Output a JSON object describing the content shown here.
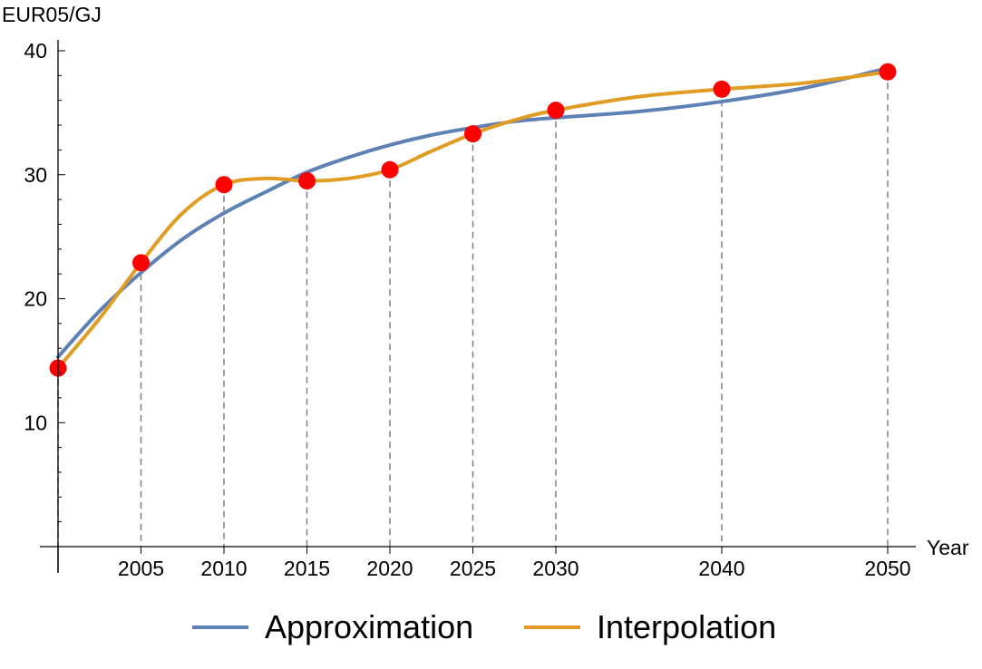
{
  "chart_data": {
    "type": "line",
    "title": "",
    "xlabel": "Year",
    "ylabel": "EUR05/GJ",
    "xlim": [
      2000,
      2050
    ],
    "ylim": [
      0,
      40
    ],
    "x_ticks": [
      2005,
      2010,
      2015,
      2020,
      2025,
      2030,
      2040,
      2050
    ],
    "y_ticks": [
      10,
      20,
      30,
      40
    ],
    "grid": false,
    "legend_position": "bottom",
    "points": {
      "x": [
        2000,
        2005,
        2010,
        2015,
        2020,
        2025,
        2030,
        2040,
        2050
      ],
      "y": [
        14.4,
        22.9,
        29.2,
        29.5,
        30.4,
        33.3,
        35.2,
        36.9,
        38.3
      ],
      "color": "#ff0000"
    },
    "series": [
      {
        "name": "Approximation",
        "color": "#5e81b5",
        "x": [
          2000,
          2002.5,
          2005,
          2007.5,
          2010,
          2012.5,
          2015,
          2017.5,
          2020,
          2022.5,
          2025,
          2027.5,
          2030,
          2035,
          2040,
          2045,
          2050
        ],
        "y": [
          15.3,
          19.0,
          22.1,
          24.8,
          26.9,
          28.6,
          30.2,
          31.4,
          32.4,
          33.2,
          33.8,
          34.3,
          34.6,
          35.1,
          35.9,
          37.0,
          38.6
        ]
      },
      {
        "name": "Interpolation",
        "color": "#e19c24",
        "x": [
          2000,
          2002.5,
          2005,
          2007.5,
          2010,
          2012.5,
          2015,
          2017.5,
          2020,
          2022.5,
          2025,
          2027.5,
          2030,
          2035,
          2040,
          2045,
          2050
        ],
        "y": [
          14.4,
          18.4,
          22.9,
          26.9,
          29.2,
          29.7,
          29.5,
          29.7,
          30.4,
          31.9,
          33.3,
          34.4,
          35.2,
          36.3,
          36.9,
          37.4,
          38.3
        ]
      }
    ],
    "colors": {
      "axis": "#000000",
      "guide": "#808080"
    }
  }
}
